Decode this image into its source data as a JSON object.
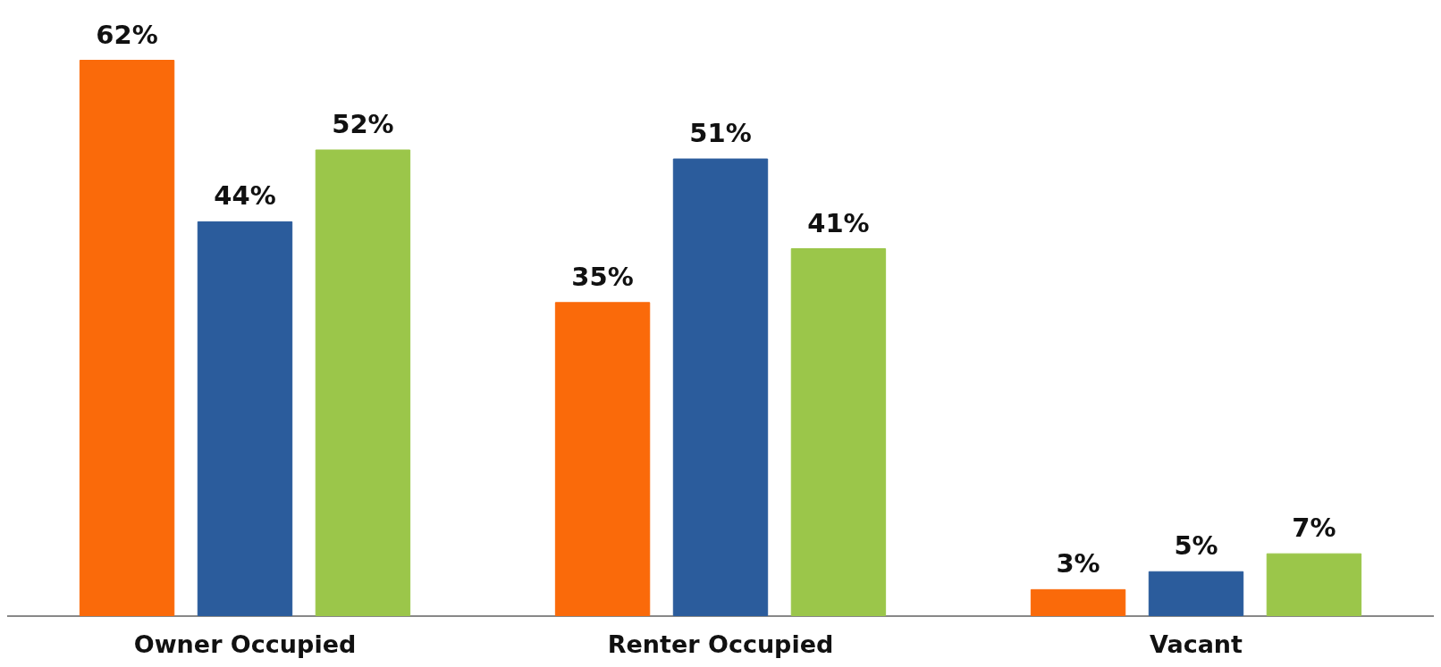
{
  "chart_data": {
    "type": "bar",
    "categories": [
      "Owner Occupied",
      "Renter Occupied",
      "Vacant"
    ],
    "series": [
      {
        "color": "#fa6a0a",
        "values": [
          62,
          35,
          3
        ],
        "value_labels": [
          "62%",
          "35%",
          "3%"
        ]
      },
      {
        "color": "#2b5c9c",
        "values": [
          44,
          51,
          5
        ],
        "value_labels": [
          "44%",
          "51%",
          "5%"
        ]
      },
      {
        "color": "#9bc64a",
        "values": [
          52,
          41,
          7
        ],
        "value_labels": [
          "52%",
          "41%",
          "7%"
        ]
      }
    ]
  }
}
